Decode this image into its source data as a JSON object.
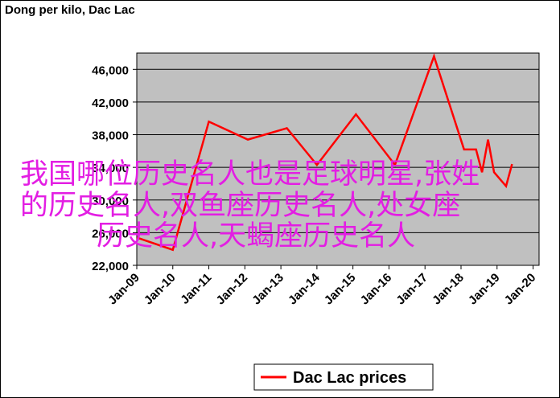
{
  "chart_data": {
    "type": "line",
    "title": "Dong per kilo, Dac Lac",
    "x": [
      "2009-01",
      "2010-01",
      "2011-01",
      "2012-02",
      "2013-03",
      "2014-01",
      "2015-02",
      "2016-03",
      "2017-04",
      "2018-02",
      "2018-06",
      "2018-08",
      "2018-10",
      "2018-12",
      "2019-04",
      "2019-06"
    ],
    "series": [
      {
        "name": "Dac Lac prices",
        "color": "#ff0000",
        "values": [
          25400,
          23900,
          39600,
          37400,
          38800,
          34300,
          40500,
          34300,
          47600,
          36200,
          36200,
          33400,
          37400,
          33400,
          31700,
          34400
        ]
      }
    ],
    "xlim": [
      "2009-01",
      "2020-03"
    ],
    "xticks": [
      {
        "value": "2009-01",
        "label": "Jan-09"
      },
      {
        "value": "2010-01",
        "label": "Jan-10"
      },
      {
        "value": "2011-01",
        "label": "Jan-11"
      },
      {
        "value": "2012-01",
        "label": "Jan-12"
      },
      {
        "value": "2013-01",
        "label": "Jan-13"
      },
      {
        "value": "2014-01",
        "label": "Jan-14"
      },
      {
        "value": "2015-01",
        "label": "Jan-15"
      },
      {
        "value": "2016-01",
        "label": "Jan-16"
      },
      {
        "value": "2017-01",
        "label": "Jan-17"
      },
      {
        "value": "2018-01",
        "label": "Jan-18"
      },
      {
        "value": "2019-01",
        "label": "Jan-19"
      },
      {
        "value": "2020-01",
        "label": "Jan-20"
      }
    ],
    "ylim": [
      22000,
      48000
    ],
    "yticks": [
      {
        "value": 22000,
        "label": "22,000"
      },
      {
        "value": 26000,
        "label": "26,000"
      },
      {
        "value": 30000,
        "label": "30,000"
      },
      {
        "value": 34000,
        "label": "34,000"
      },
      {
        "value": 38000,
        "label": "38,000"
      },
      {
        "value": 42000,
        "label": "42,000"
      },
      {
        "value": 46000,
        "label": "46,000"
      }
    ],
    "grid": true,
    "legend": "bottom",
    "annotations": [
      "我国哪位历史名人也是足球明星,张姓",
      "的历史名人,双鱼座历史名人,处女座",
      "历史名人,天蝎座历史名人"
    ]
  }
}
